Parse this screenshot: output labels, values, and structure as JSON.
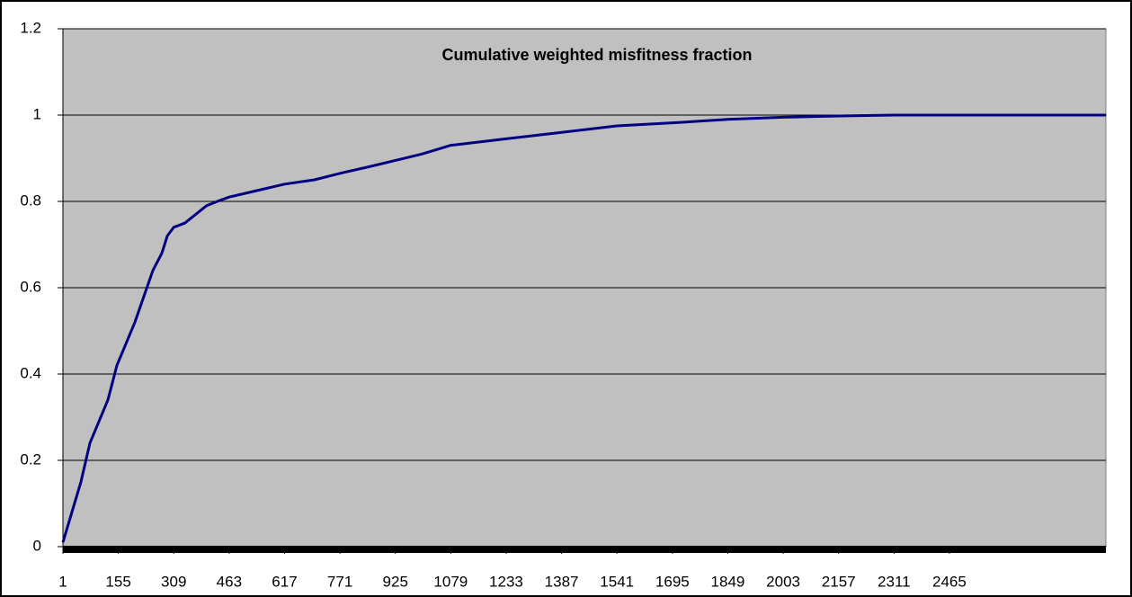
{
  "chart_data": {
    "type": "line",
    "title": "Cumulative weighted misfitness fraction",
    "x": [
      1,
      26,
      51,
      76,
      101,
      126,
      151,
      176,
      201,
      226,
      251,
      276,
      291,
      309,
      340,
      370,
      400,
      430,
      463,
      540,
      617,
      700,
      771,
      850,
      925,
      1000,
      1079,
      1233,
      1387,
      1541,
      1695,
      1849,
      2003,
      2157,
      2311,
      2900
    ],
    "series": [
      {
        "name": "Cumulative weighted misfitness fraction",
        "color": "#000080",
        "values": [
          0.01,
          0.08,
          0.15,
          0.24,
          0.29,
          0.34,
          0.42,
          0.47,
          0.52,
          0.58,
          0.64,
          0.68,
          0.72,
          0.74,
          0.75,
          0.77,
          0.79,
          0.8,
          0.81,
          0.825,
          0.84,
          0.85,
          0.865,
          0.88,
          0.895,
          0.91,
          0.93,
          0.945,
          0.96,
          0.975,
          0.982,
          0.99,
          0.995,
          0.998,
          1.0,
          1.0
        ]
      }
    ],
    "xlim": [
      1,
      2900
    ],
    "xticks": [
      1,
      155,
      309,
      463,
      617,
      771,
      925,
      1079,
      1233,
      1387,
      1541,
      1695,
      1849,
      2003,
      2157,
      2311,
      2465
    ],
    "ylim": [
      0,
      1.2
    ],
    "yticks": [
      0,
      0.2,
      0.4,
      0.6,
      0.8,
      1,
      1.2
    ],
    "grid": true,
    "plot_background": "#c0c0c0"
  }
}
